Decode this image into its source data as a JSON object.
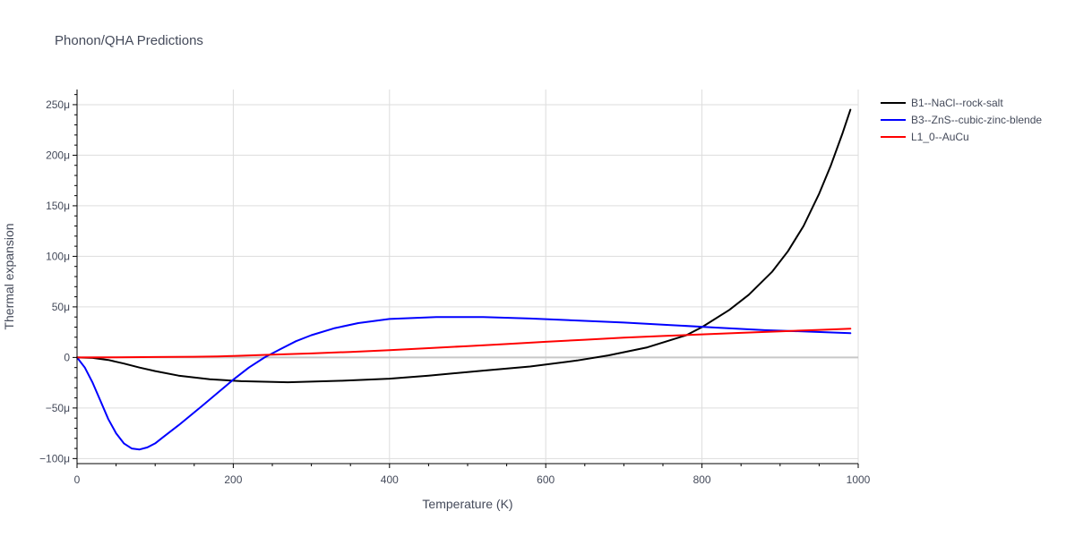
{
  "chart_data": {
    "type": "line",
    "title": "Phonon/QHA Predictions",
    "xlabel": "Temperature (K)",
    "ylabel": "Thermal expansion",
    "xlim": [
      0,
      1000
    ],
    "ylim": [
      -105,
      265
    ],
    "x_ticks": [
      0,
      200,
      400,
      600,
      800,
      1000
    ],
    "x_tick_labels": [
      "0",
      "200",
      "400",
      "600",
      "800",
      "1000"
    ],
    "y_ticks": [
      -100,
      -50,
      0,
      50,
      100,
      150,
      200,
      250
    ],
    "y_tick_labels": [
      "−100μ",
      "−50μ",
      "0",
      "50μ",
      "100μ",
      "150μ",
      "200μ",
      "250μ"
    ],
    "y_unit": "μ",
    "grid": true,
    "legend_position": "top-right",
    "series": [
      {
        "name": "B1--NaCl--rock-salt",
        "color": "#000000",
        "x": [
          0,
          20,
          40,
          60,
          80,
          100,
          130,
          170,
          210,
          270,
          340,
          400,
          450,
          520,
          580,
          640,
          680,
          730,
          780,
          800,
          835,
          860,
          890,
          910,
          930,
          950,
          965,
          980,
          990
        ],
        "y": [
          0,
          -0.5,
          -2.5,
          -6,
          -10,
          -13.5,
          -18,
          -21.5,
          -23.5,
          -24.5,
          -23,
          -21,
          -18,
          -13,
          -9,
          -3,
          2,
          10,
          22,
          30,
          47,
          62,
          85,
          105,
          130,
          162,
          190,
          222,
          245
        ]
      },
      {
        "name": "B3--ZnS--cubic-zinc-blende",
        "color": "#0000ff",
        "x": [
          0,
          10,
          20,
          30,
          40,
          50,
          60,
          70,
          80,
          90,
          100,
          110,
          130,
          160,
          180,
          200,
          220,
          240,
          260,
          280,
          300,
          330,
          360,
          400,
          460,
          520,
          580,
          640,
          700,
          760,
          820,
          880,
          940,
          990
        ],
        "y": [
          0,
          -10,
          -25,
          -43,
          -61,
          -75,
          -85,
          -90,
          -91,
          -89,
          -85,
          -79,
          -67,
          -48,
          -35,
          -22,
          -10,
          0,
          8,
          16,
          22,
          29,
          34,
          38,
          40,
          40,
          38.5,
          36.5,
          34.5,
          32,
          29.5,
          27,
          25.5,
          24
        ]
      },
      {
        "name": "L1_0--AuCu",
        "color": "#ff0000",
        "x": [
          0,
          50,
          100,
          150,
          180,
          200,
          250,
          300,
          350,
          400,
          450,
          500,
          550,
          600,
          650,
          700,
          750,
          800,
          850,
          900,
          950,
          990
        ],
        "y": [
          0,
          0.2,
          0.4,
          0.7,
          1,
          1.5,
          2.7,
          4,
          5.5,
          7.2,
          9.2,
          11.2,
          13.3,
          15.5,
          17.5,
          19.5,
          21.2,
          22.8,
          24.3,
          25.8,
          27.2,
          28.5
        ]
      }
    ]
  }
}
